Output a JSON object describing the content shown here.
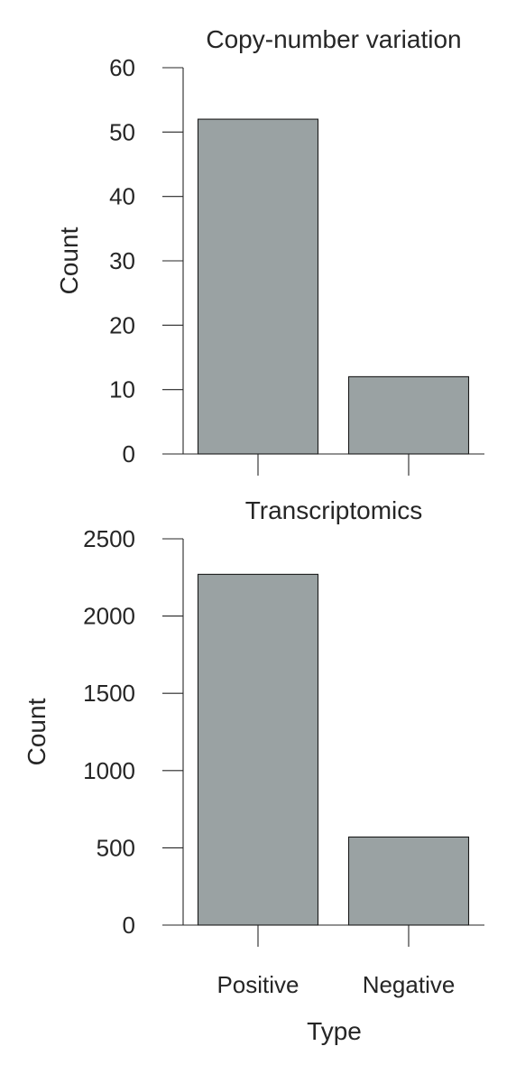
{
  "chart_data": [
    {
      "type": "bar",
      "title": "Copy-number variation",
      "ylabel": "Count",
      "xlabel": "",
      "categories": [
        "Positive",
        "Negative"
      ],
      "values": [
        52,
        12
      ],
      "ylim": [
        0,
        60
      ],
      "yticks": [
        0,
        10,
        20,
        30,
        40,
        50,
        60
      ],
      "show_xtick_labels": false,
      "bar_color": "#9aa2a3",
      "grid": false
    },
    {
      "type": "bar",
      "title": "Transcriptomics",
      "ylabel": "Count",
      "xlabel": "Type",
      "categories": [
        "Positive",
        "Negative"
      ],
      "values": [
        2270,
        570
      ],
      "ylim": [
        0,
        2500
      ],
      "yticks": [
        0,
        500,
        1000,
        1500,
        2000,
        2500
      ],
      "show_xtick_labels": true,
      "bar_color": "#9aa2a3",
      "grid": false
    }
  ]
}
